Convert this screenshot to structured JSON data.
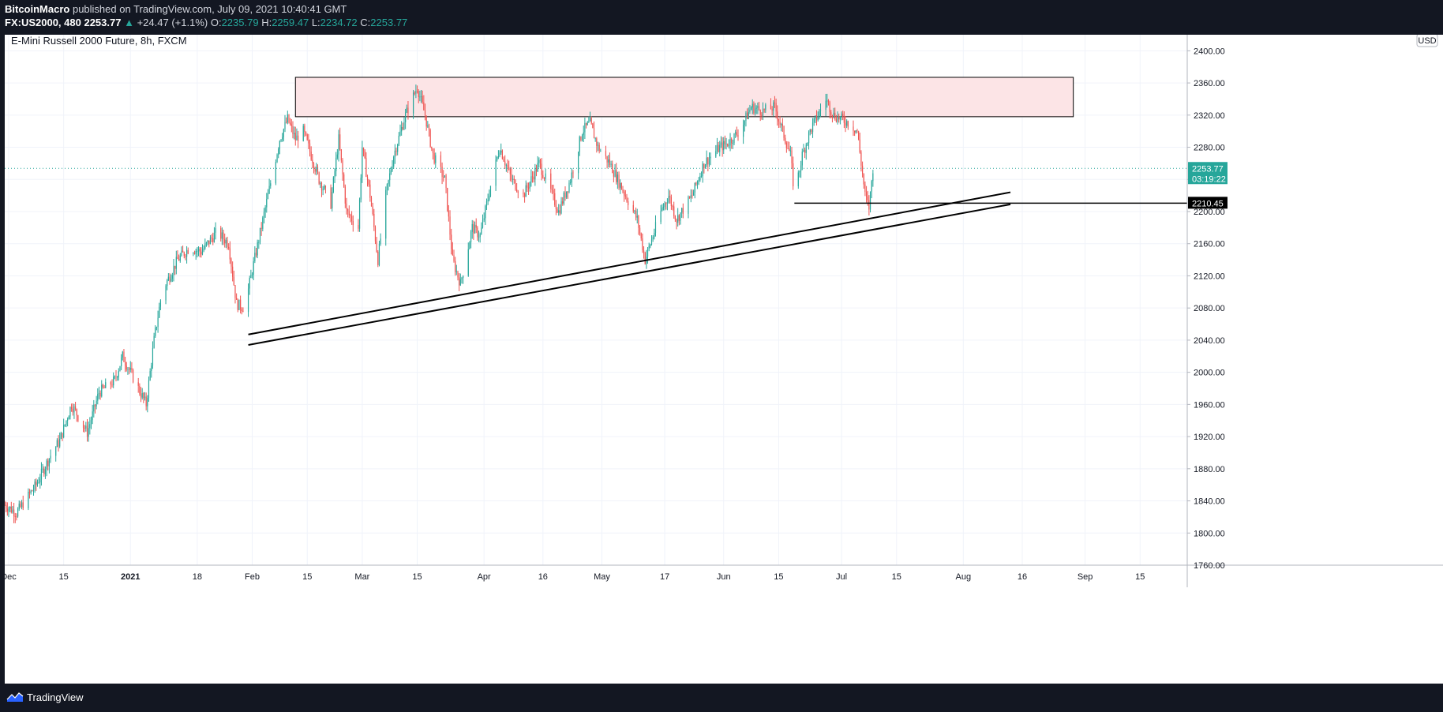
{
  "header": {
    "author": "BitcoinMacro",
    "published": "published on TradingView.com, July 09, 2021 10:40:41 GMT",
    "symbol": "FX:US2000, 480",
    "last": "2253.77",
    "change_arrow": "▲",
    "change": "+24.47 (+1.1%)",
    "o_label": "O:",
    "o_value": "2235.79",
    "h_label": "H:",
    "h_value": "2259.47",
    "l_label": "L:",
    "l_value": "2234.72",
    "c_label": "C:",
    "c_value": "2253.77"
  },
  "footer": {
    "brand": "TradingView",
    "logo_icon": "tradingview-logo-icon"
  },
  "colors": {
    "up": "#26a69a",
    "down": "#ef5350",
    "zone_fill": "#fce4e6",
    "grid": "#f0f3fa",
    "dark_bg": "#131722"
  },
  "chart_data": {
    "type": "candlestick",
    "title": "E-Mini Russell 2000 Future, 8h, FXCM",
    "currency": "USD",
    "interval": "8h",
    "x_range": [
      "2020-11-30",
      "2021-09-27"
    ],
    "ylim": [
      1760,
      2420
    ],
    "y_ticks": [
      1760,
      1800,
      1840,
      1880,
      1920,
      1960,
      2000,
      2040,
      2080,
      2120,
      2160,
      2200,
      2240,
      2280,
      2320,
      2360,
      2400
    ],
    "y_tick_labels": [
      "1760.00",
      "1800.00",
      "1840.00",
      "1880.00",
      "1920.00",
      "1960.00",
      "2000.00",
      "2040.00",
      "2080.00",
      "2120.00",
      "2160.00",
      "2200.00",
      "2240.00",
      "2280.00",
      "2320.00",
      "2360.00",
      "2400.00"
    ],
    "x_ticks": [
      {
        "date": "2020-12-01",
        "label": "Dec"
      },
      {
        "date": "2020-12-15",
        "label": "15"
      },
      {
        "date": "2021-01-01",
        "label": "2021",
        "bold": true
      },
      {
        "date": "2021-01-18",
        "label": "18"
      },
      {
        "date": "2021-02-01",
        "label": "Feb"
      },
      {
        "date": "2021-02-15",
        "label": "15"
      },
      {
        "date": "2021-03-01",
        "label": "Mar"
      },
      {
        "date": "2021-03-15",
        "label": "15"
      },
      {
        "date": "2021-04-01",
        "label": "Apr"
      },
      {
        "date": "2021-04-16",
        "label": "16"
      },
      {
        "date": "2021-05-01",
        "label": "May"
      },
      {
        "date": "2021-05-17",
        "label": "17"
      },
      {
        "date": "2021-06-01",
        "label": "Jun"
      },
      {
        "date": "2021-06-15",
        "label": "15"
      },
      {
        "date": "2021-07-01",
        "label": "Jul"
      },
      {
        "date": "2021-07-15",
        "label": "15"
      },
      {
        "date": "2021-08-01",
        "label": "Aug"
      },
      {
        "date": "2021-08-16",
        "label": "16"
      },
      {
        "date": "2021-09-01",
        "label": "Sep"
      },
      {
        "date": "2021-09-15",
        "label": "15"
      }
    ],
    "price_path": [
      [
        "2020-11-30",
        1835
      ],
      [
        "2020-12-03",
        1825
      ],
      [
        "2020-12-08",
        1860
      ],
      [
        "2020-12-12",
        1900
      ],
      [
        "2020-12-14",
        1915
      ],
      [
        "2020-12-17",
        1960
      ],
      [
        "2020-12-21",
        1925
      ],
      [
        "2020-12-24",
        1975
      ],
      [
        "2020-12-28",
        1990
      ],
      [
        "2020-12-30",
        2020
      ],
      [
        "2021-01-02",
        1990
      ],
      [
        "2021-01-05",
        1960
      ],
      [
        "2021-01-07",
        2040
      ],
      [
        "2021-01-09",
        2100
      ],
      [
        "2021-01-13",
        2140
      ],
      [
        "2021-01-16",
        2155
      ],
      [
        "2021-01-19",
        2150
      ],
      [
        "2021-01-23",
        2175
      ],
      [
        "2021-01-26",
        2160
      ],
      [
        "2021-01-28",
        2085
      ],
      [
        "2021-01-30",
        2080
      ],
      [
        "2021-02-02",
        2150
      ],
      [
        "2021-02-05",
        2220
      ],
      [
        "2021-02-08",
        2290
      ],
      [
        "2021-02-10",
        2315
      ],
      [
        "2021-02-12",
        2290
      ],
      [
        "2021-02-14",
        2300
      ],
      [
        "2021-02-18",
        2240
      ],
      [
        "2021-02-21",
        2210
      ],
      [
        "2021-02-23",
        2290
      ],
      [
        "2021-02-25",
        2200
      ],
      [
        "2021-02-28",
        2180
      ],
      [
        "2021-03-01",
        2280
      ],
      [
        "2021-03-03",
        2220
      ],
      [
        "2021-03-05",
        2140
      ],
      [
        "2021-03-07",
        2220
      ],
      [
        "2021-03-09",
        2270
      ],
      [
        "2021-03-12",
        2320
      ],
      [
        "2021-03-15",
        2355
      ],
      [
        "2021-03-17",
        2320
      ],
      [
        "2021-03-19",
        2270
      ],
      [
        "2021-03-22",
        2240
      ],
      [
        "2021-03-24",
        2140
      ],
      [
        "2021-03-26",
        2110
      ],
      [
        "2021-03-29",
        2180
      ],
      [
        "2021-03-31",
        2170
      ],
      [
        "2021-04-03",
        2240
      ],
      [
        "2021-04-05",
        2280
      ],
      [
        "2021-04-08",
        2240
      ],
      [
        "2021-04-11",
        2220
      ],
      [
        "2021-04-13",
        2240
      ],
      [
        "2021-04-15",
        2260
      ],
      [
        "2021-04-18",
        2225
      ],
      [
        "2021-04-20",
        2200
      ],
      [
        "2021-04-23",
        2240
      ],
      [
        "2021-04-26",
        2300
      ],
      [
        "2021-04-28",
        2310
      ],
      [
        "2021-04-30",
        2280
      ],
      [
        "2021-05-03",
        2260
      ],
      [
        "2021-05-06",
        2230
      ],
      [
        "2021-05-08",
        2210
      ],
      [
        "2021-05-10",
        2190
      ],
      [
        "2021-05-12",
        2140
      ],
      [
        "2021-05-14",
        2170
      ],
      [
        "2021-05-16",
        2200
      ],
      [
        "2021-05-18",
        2220
      ],
      [
        "2021-05-20",
        2190
      ],
      [
        "2021-05-24",
        2220
      ],
      [
        "2021-05-27",
        2260
      ],
      [
        "2021-05-31",
        2280
      ],
      [
        "2021-06-02",
        2285
      ],
      [
        "2021-06-05",
        2300
      ],
      [
        "2021-06-08",
        2330
      ],
      [
        "2021-06-11",
        2325
      ],
      [
        "2021-06-14",
        2330
      ],
      [
        "2021-06-16",
        2300
      ],
      [
        "2021-06-18",
        2270
      ],
      [
        "2021-06-19",
        2220
      ],
      [
        "2021-06-21",
        2270
      ],
      [
        "2021-06-23",
        2300
      ],
      [
        "2021-06-25",
        2320
      ],
      [
        "2021-06-27",
        2340
      ],
      [
        "2021-06-29",
        2320
      ],
      [
        "2021-07-01",
        2315
      ],
      [
        "2021-07-03",
        2310
      ],
      [
        "2021-07-05",
        2300
      ],
      [
        "2021-07-06",
        2260
      ],
      [
        "2021-07-07",
        2220
      ],
      [
        "2021-07-08",
        2205
      ],
      [
        "2021-07-09",
        2253.77
      ]
    ],
    "drawings": {
      "resistance_zone": {
        "from": "2021-02-12",
        "to": "2021-08-29",
        "top": 2367,
        "bottom": 2318
      },
      "horizontal_support": {
        "from": "2021-06-19",
        "to": "2021-09-28",
        "price": 2210.45
      },
      "trendline_upper": [
        [
          "2021-01-31",
          2047
        ],
        [
          "2021-08-13",
          2224
        ]
      ],
      "trendline_lower": [
        [
          "2021-01-31",
          2034
        ],
        [
          "2021-08-13",
          2209
        ]
      ],
      "last_price_line": {
        "price": 2253.77
      }
    },
    "price_labels": [
      {
        "price": 2253.77,
        "text": "2253.77",
        "sub": "03:19:22",
        "style": "teal"
      },
      {
        "price": 2210.45,
        "text": "2210.45",
        "style": "black"
      }
    ],
    "grid": true
  }
}
